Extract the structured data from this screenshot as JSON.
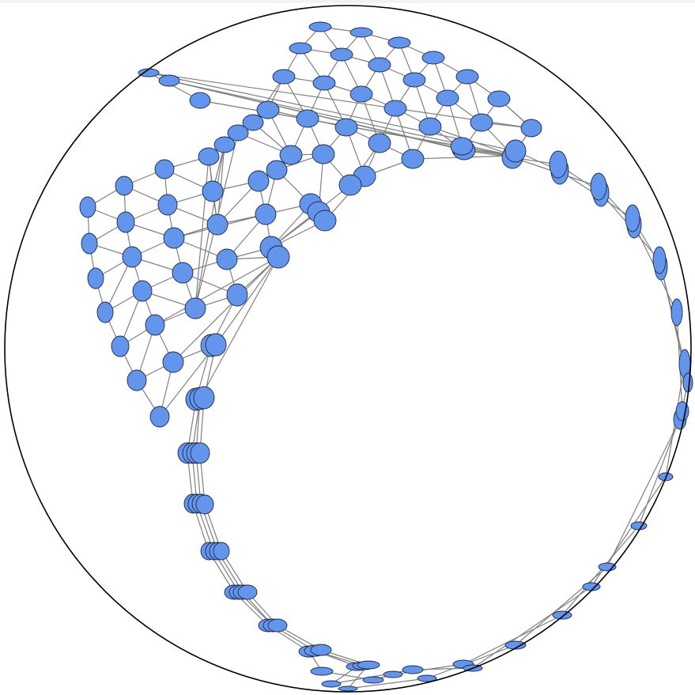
{
  "diagram": {
    "kind": "hyperbolic-graph-embedding",
    "boundary": "poincare-disk",
    "node_color": "#6495ED",
    "node_stroke": "#1f2a44",
    "edge_color": "#808080",
    "boundary_color": "#000000",
    "background": "#ffffff"
  }
}
